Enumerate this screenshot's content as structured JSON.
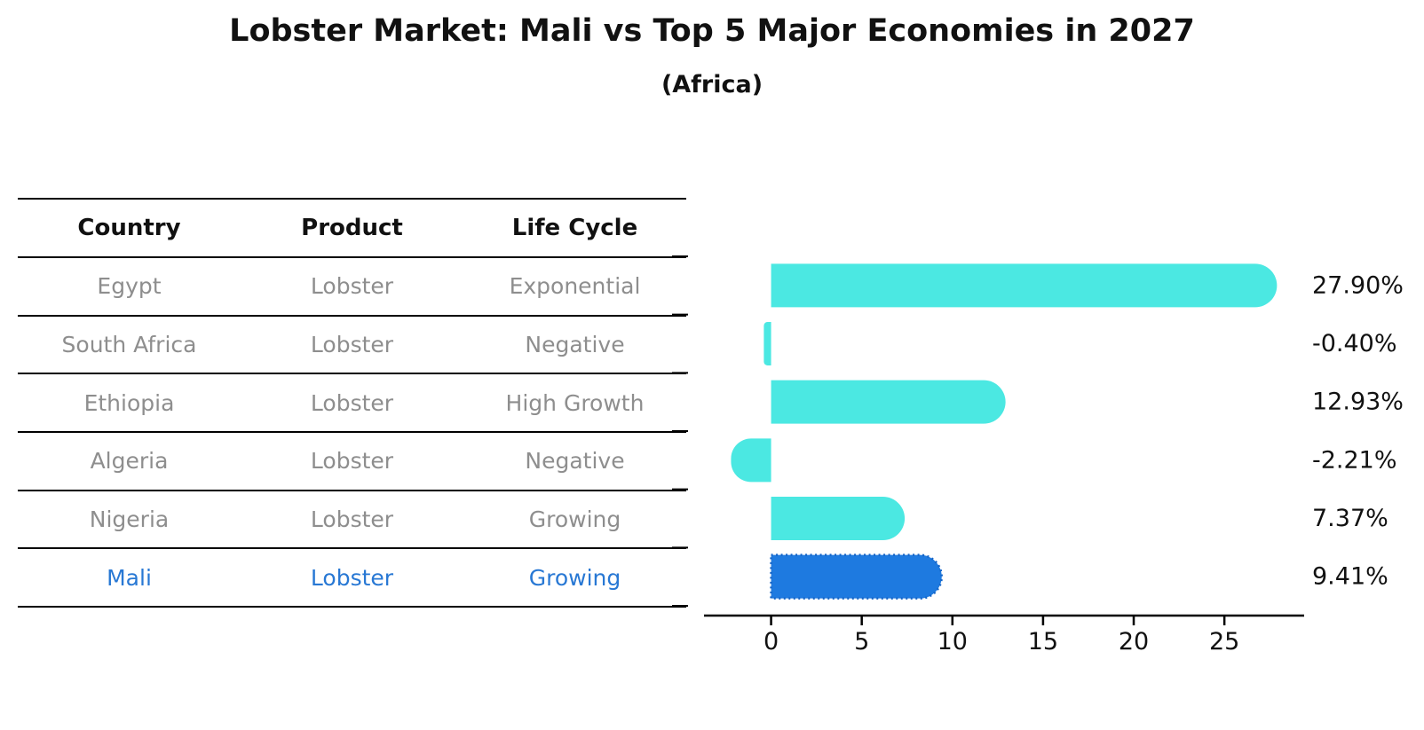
{
  "title": "Lobster Market: Mali vs Top 5 Major Economies in 2027",
  "subtitle": "(Africa)",
  "table": {
    "headers": [
      "Country",
      "Product",
      "Life Cycle"
    ],
    "rows": [
      {
        "country": "Egypt",
        "product": "Lobster",
        "life_cycle": "Exponential",
        "highlight": false
      },
      {
        "country": "South Africa",
        "product": "Lobster",
        "life_cycle": "Negative",
        "highlight": false
      },
      {
        "country": "Ethiopia",
        "product": "Lobster",
        "life_cycle": "High Growth",
        "highlight": false
      },
      {
        "country": "Algeria",
        "product": "Lobster",
        "life_cycle": "Negative",
        "highlight": false
      },
      {
        "country": "Nigeria",
        "product": "Lobster",
        "life_cycle": "Growing",
        "highlight": false
      },
      {
        "country": "Mali",
        "product": "Lobster",
        "life_cycle": "Growing",
        "highlight": true
      }
    ]
  },
  "chart_data": {
    "type": "bar",
    "orientation": "horizontal",
    "title": "Lobster Market: Mali vs Top 5 Major Economies in 2027",
    "subtitle": "(Africa)",
    "categories": [
      "Egypt",
      "South Africa",
      "Ethiopia",
      "Algeria",
      "Nigeria",
      "Mali"
    ],
    "values": [
      27.9,
      -0.4,
      12.93,
      -2.21,
      7.37,
      9.41
    ],
    "value_labels": [
      "27.90%",
      "-0.40%",
      "12.93%",
      "-2.21%",
      "7.37%",
      "9.41%"
    ],
    "x_ticks": [
      "0",
      "5",
      "10",
      "15",
      "20",
      "25"
    ],
    "x_tick_values": [
      0,
      5,
      10,
      15,
      20,
      25
    ],
    "xlim": [
      -3.7,
      29.4
    ],
    "grid": false,
    "legend": false,
    "highlight_index": 5
  },
  "colors": {
    "bar": "#4be8e2",
    "highlight_bar_fill": "#1e7ae0",
    "highlight_bar_border": "#1565c8",
    "highlight_text": "#2878d4",
    "row_text": "#8e8e8e",
    "header_text": "#111111",
    "axis": "#000000",
    "background": "#ffffff"
  }
}
